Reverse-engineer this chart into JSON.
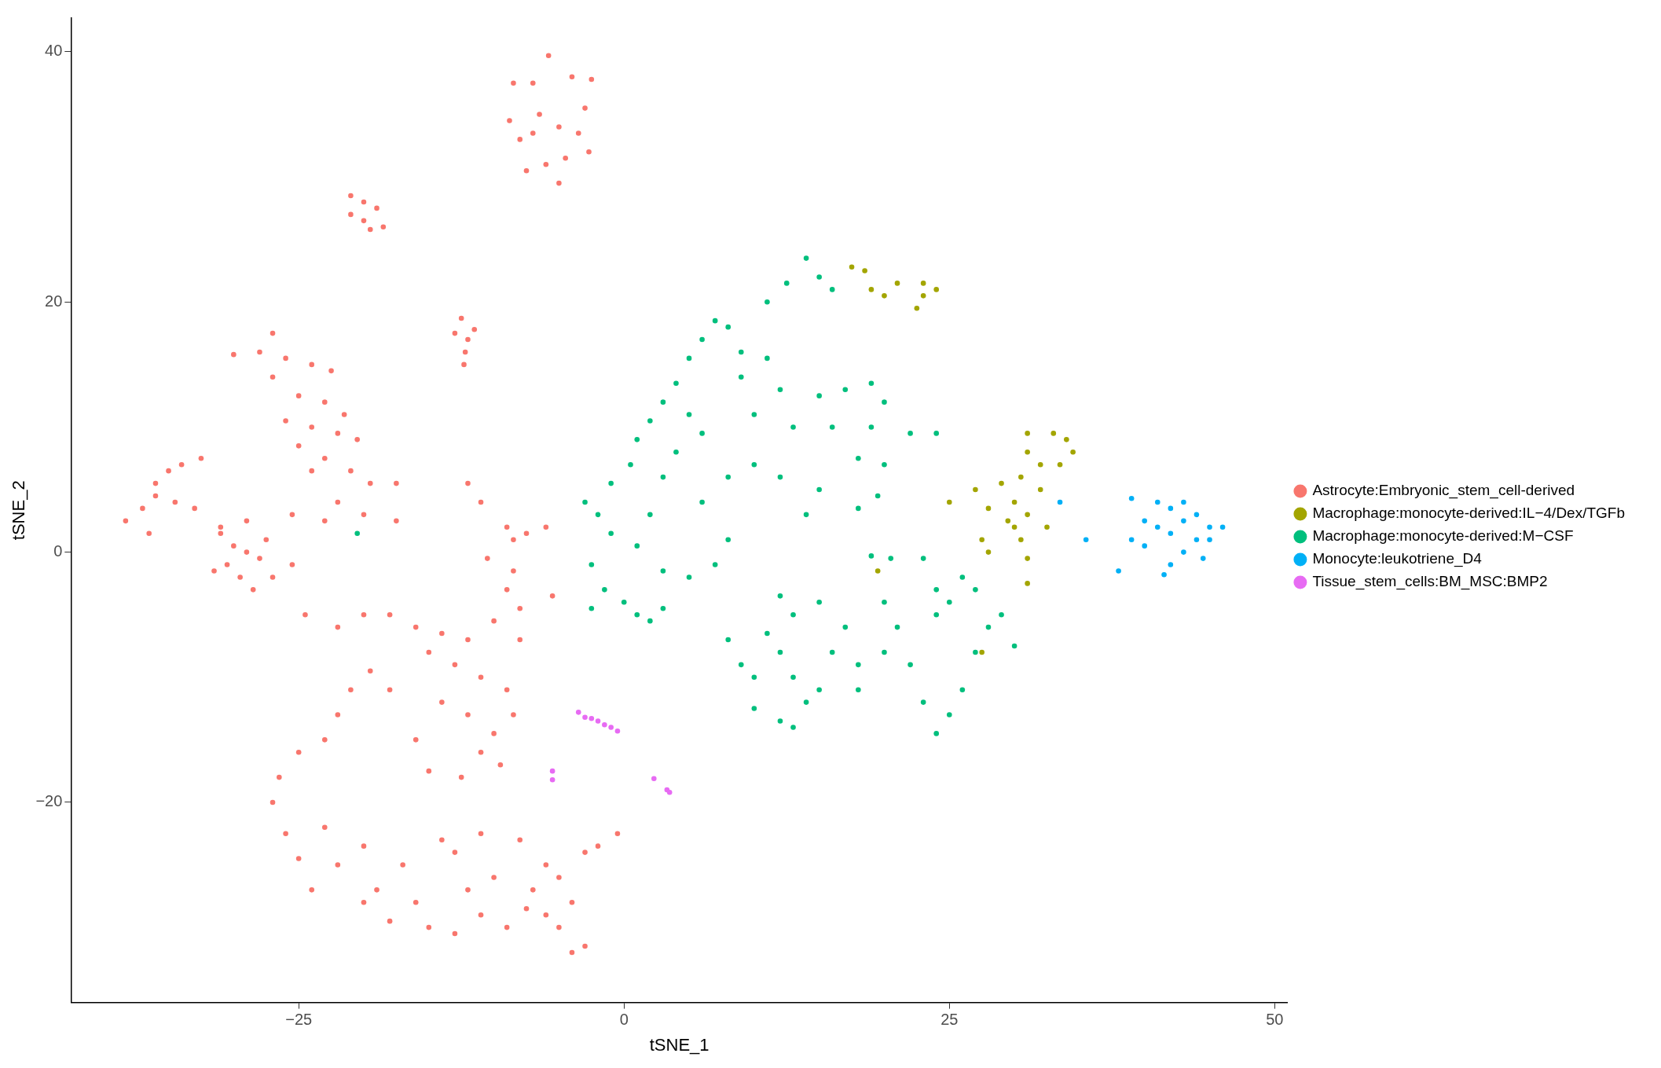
{
  "chart_data": {
    "type": "scatter",
    "xlabel": "tSNE_1",
    "ylabel": "tSNE_2",
    "xlim": [
      -42.5,
      51
    ],
    "ylim": [
      -36,
      42.7
    ],
    "xticks": [
      -25,
      0,
      25,
      50
    ],
    "yticks": [
      -20,
      0,
      20,
      40
    ],
    "grid": false,
    "legend": "right",
    "marker": "circle",
    "series": [
      {
        "name": "Astrocyte:Embryonic_stem_cell-derived",
        "color": "#f8766d",
        "x": [
          -5.8,
          -7,
          -4,
          -2.5,
          -8.5,
          -8.8,
          -6.5,
          -5,
          -3,
          -2.7,
          -4.5,
          -6,
          -7.5,
          -5,
          -8,
          -3.5,
          -7,
          -21,
          -20,
          -19,
          -21,
          -20,
          -18.5,
          -19.5,
          -12.5,
          -13,
          -12,
          -12.2,
          -12.3,
          -11.5,
          -27,
          -30,
          -28,
          -26,
          -24,
          -22.5,
          -27,
          -25,
          -23,
          -21.5,
          -26,
          -24,
          -22,
          -20.5,
          -25,
          -23,
          -21,
          -19.5,
          -24,
          -22,
          -25.5,
          -23,
          -20,
          -17.5,
          -17.5,
          -38.3,
          -37,
          -36,
          -35,
          -34,
          -32.5,
          -36,
          -34.5,
          -33,
          -36.5,
          -31,
          -29,
          -31,
          -30,
          -29,
          -28,
          -30.5,
          -29.5,
          -28.5,
          -27,
          -27.5,
          -31.5,
          -25.5,
          -9,
          -8.5,
          -7.5,
          -6,
          -10.5,
          -11,
          -12,
          -24.5,
          -22,
          -20,
          -18,
          -16,
          -14,
          -12,
          -10,
          -8,
          -9,
          -8.5,
          -15,
          -13,
          -11,
          -9,
          -8,
          -14,
          -12,
          -10,
          -8.5,
          -11,
          -9.5,
          -12.5,
          -15,
          -16,
          -18,
          -19.5,
          -21,
          -22,
          -23,
          -25,
          -26.5,
          -27,
          -26,
          -25,
          -24,
          -22,
          -20,
          -19,
          -17,
          -16,
          -15,
          -13,
          -11,
          -12,
          -13,
          -11,
          -9,
          -10,
          -14,
          -18,
          -20,
          -23,
          -8,
          -6,
          -7,
          -5,
          -4,
          -3,
          -2,
          -0.5,
          -5,
          -4,
          -6,
          -7.5,
          -3,
          -5.5
        ],
        "values": [
          39.7,
          37.5,
          38,
          37.8,
          37.5,
          34.5,
          35,
          34,
          35.5,
          32,
          31.5,
          31,
          30.5,
          29.5,
          33,
          33.5,
          33.5,
          28.5,
          28,
          27.5,
          27,
          26.5,
          26,
          25.8,
          18.7,
          17.5,
          17,
          16,
          15,
          17.8,
          17.5,
          15.8,
          16,
          15.5,
          15,
          14.5,
          14,
          12.5,
          12,
          11,
          10.5,
          10,
          9.5,
          9,
          8.5,
          7.5,
          6.5,
          5.5,
          6.5,
          4,
          3,
          2.5,
          3,
          2.5,
          5.5,
          2.5,
          3.5,
          5.5,
          6.5,
          7,
          7.5,
          4.5,
          4,
          3.5,
          1.5,
          2,
          2.5,
          1.5,
          0.5,
          0,
          -0.5,
          -1,
          -2,
          -3,
          -2,
          1,
          -1.5,
          -1,
          2,
          1,
          1.5,
          2,
          -0.5,
          4,
          5.5,
          -5,
          -6,
          -5,
          -5,
          -6,
          -6.5,
          -7,
          -5.5,
          -4.5,
          -3,
          -1.5,
          -8,
          -9,
          -10,
          -11,
          -7,
          -12,
          -13,
          -14.5,
          -13,
          -16,
          -17,
          -18,
          -17.5,
          -15,
          -11,
          -9.5,
          -11,
          -13,
          -15,
          -16,
          -18,
          -20,
          -22.5,
          -24.5,
          -27,
          -25,
          -23.5,
          -27,
          -25,
          -28,
          -30,
          -30.5,
          -29,
          -27,
          -24,
          -22.5,
          -30,
          -26,
          -23,
          -29.5,
          -28,
          -22,
          -23,
          -25,
          -27,
          -26,
          -28,
          -24,
          -23.5,
          -22.5,
          -30,
          -32,
          -29,
          -28.5,
          -31.5,
          -3.5
        ]
      },
      {
        "name": "Macrophage:monocyte-derived:IL−4/Dex/TGFb",
        "color": "#a3a500",
        "x": [
          17.5,
          18.5,
          19,
          20,
          21,
          23,
          24,
          23,
          22.5,
          25,
          27,
          28,
          27.5,
          28,
          29,
          30,
          30.5,
          31,
          31,
          32,
          33,
          34,
          33.5,
          34.5,
          32,
          31,
          30.5,
          31,
          31,
          29.5,
          32.5,
          27.5,
          19.5,
          30
        ],
        "values": [
          22.8,
          22.5,
          21,
          20.5,
          21.5,
          21.5,
          21,
          20.5,
          19.5,
          4,
          5,
          3.5,
          1,
          0,
          5.5,
          4,
          6,
          8,
          9.5,
          7,
          9.5,
          9,
          7,
          8,
          5,
          3,
          1,
          -0.5,
          -2.5,
          2.5,
          2,
          -8,
          -1.5,
          2
        ]
      },
      {
        "name": "Macrophage:monocyte-derived:M−CSF",
        "color": "#00bf7d",
        "x": [
          -3,
          -2,
          -1,
          -2.5,
          -1.5,
          -2.5,
          0,
          1,
          2,
          3,
          -1,
          0.5,
          1,
          2,
          3,
          4,
          5,
          6,
          7,
          8,
          9,
          5,
          6,
          4,
          3,
          2,
          1,
          3,
          5,
          7,
          8,
          6,
          8,
          10,
          12,
          10,
          12,
          11,
          9,
          12.5,
          14,
          15,
          16,
          11,
          13,
          15,
          16,
          17,
          19,
          20,
          19,
          18,
          20,
          19.5,
          18,
          14,
          15,
          22,
          24,
          20.5,
          23,
          19,
          8,
          9,
          10,
          11,
          12,
          13,
          14,
          13,
          15,
          16,
          17,
          18,
          15,
          13,
          12,
          18,
          20,
          21,
          22,
          24,
          25,
          23,
          24,
          25,
          26,
          27,
          28,
          29,
          30,
          26,
          24,
          27,
          20,
          10,
          12,
          -20.5
        ],
        "values": [
          4,
          3,
          1.5,
          -1,
          -3,
          -4.5,
          -4,
          -5,
          -5.5,
          -4.5,
          5.5,
          7,
          9,
          10.5,
          12,
          13.5,
          15.5,
          17,
          18.5,
          18,
          16,
          11,
          9.5,
          8,
          6,
          3,
          0.5,
          -1.5,
          -2,
          -1,
          1,
          4,
          6,
          7,
          6,
          11,
          13,
          15.5,
          14,
          21.5,
          23.5,
          22,
          21,
          20,
          10,
          12.5,
          10,
          13,
          13.5,
          12,
          10,
          7.5,
          7,
          4.5,
          3.5,
          3,
          5,
          9.5,
          9.5,
          -0.5,
          -0.5,
          -0.3,
          -7,
          -9,
          -10,
          -6.5,
          -8,
          -10,
          -12,
          -14,
          -11,
          -8,
          -6,
          -9,
          -4,
          -5,
          -3.5,
          -11,
          -8,
          -6,
          -9,
          -5,
          -4,
          -12,
          -14.5,
          -13,
          -11,
          -8,
          -6,
          -5,
          -7.5,
          -2,
          -3,
          -3,
          -4,
          -12.5,
          -13.5,
          1.5
        ]
      },
      {
        "name": "Monocyte:leukotriene_D4",
        "color": "#00b0f6",
        "x": [
          38,
          39,
          40,
          41,
          39,
          42,
          43,
          44,
          45,
          46,
          44,
          43,
          42,
          41.5,
          40,
          42,
          41,
          44.5,
          45,
          43,
          35.5,
          33.5
        ],
        "values": [
          -1.5,
          1,
          2.5,
          4,
          4.3,
          3.5,
          2.5,
          3,
          2,
          2,
          1,
          0,
          -1,
          -1.8,
          0.5,
          1.5,
          2,
          -0.5,
          1,
          4,
          1,
          4
        ]
      },
      {
        "name": "Tissue_stem_cells:BM_MSC:BMP2",
        "color": "#e76bf3",
        "x": [
          -3.5,
          -3,
          -2,
          -1.5,
          -1,
          -0.5,
          -2.5,
          -5.5,
          -5.5,
          2.3,
          3.3,
          3.5
        ],
        "values": [
          -12.8,
          -13.2,
          -13.5,
          -13.8,
          -14,
          -14.3,
          -13.3,
          -17.5,
          -18.2,
          -18.1,
          -19,
          -19.2
        ]
      }
    ]
  }
}
